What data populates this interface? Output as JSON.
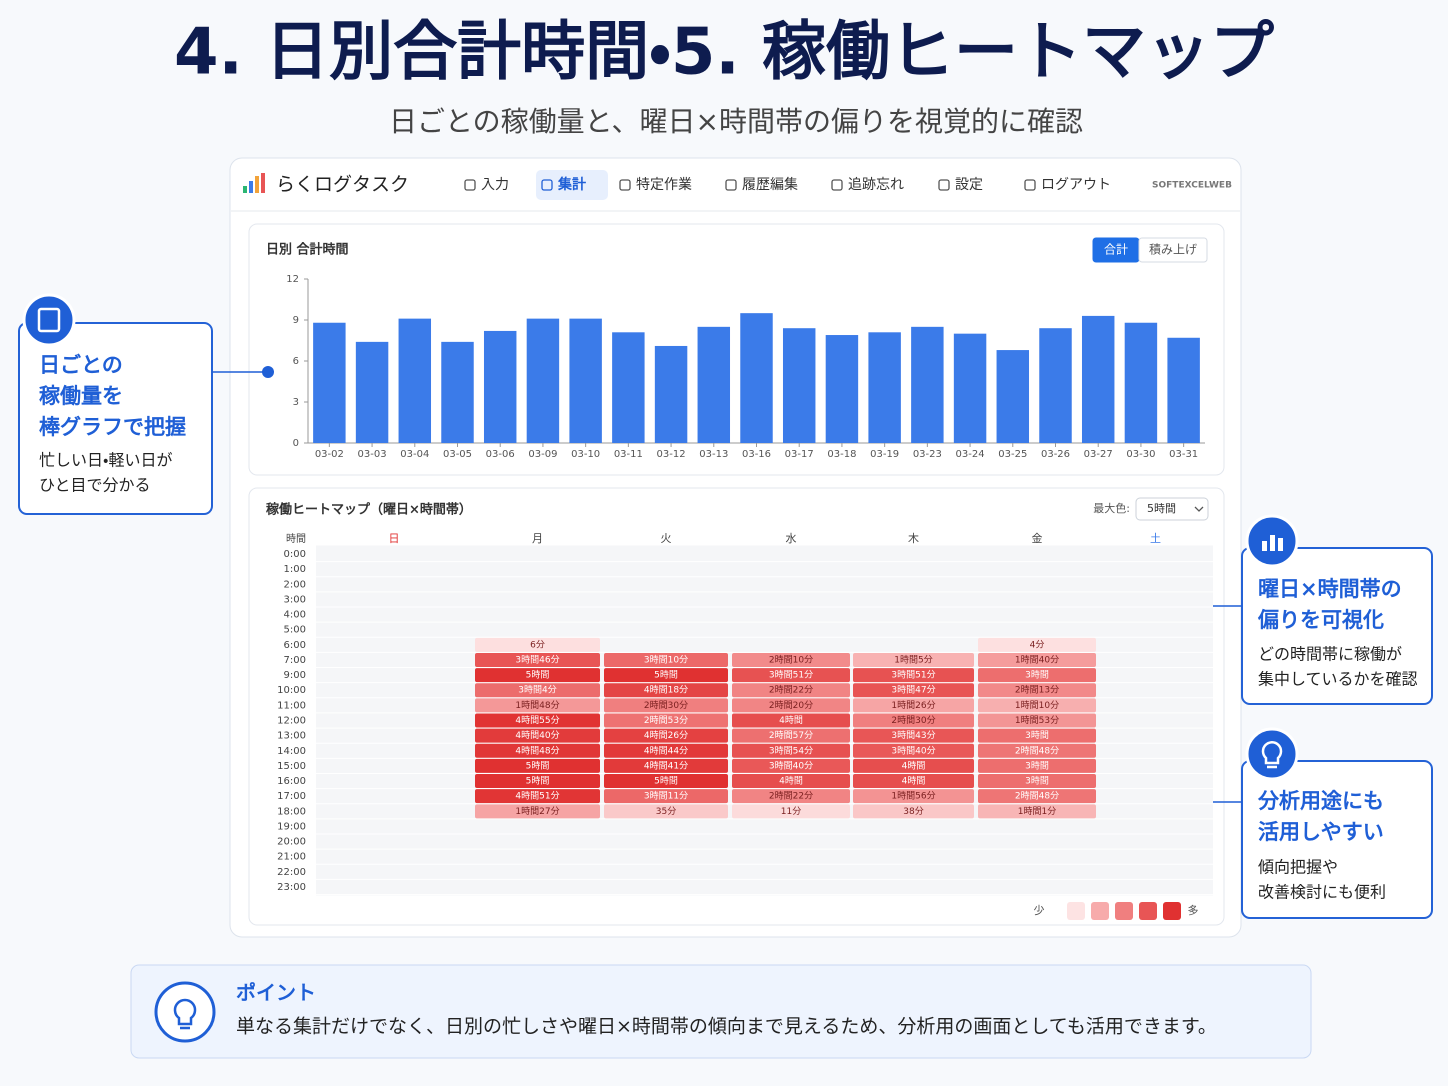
{
  "header": {
    "title": "4. 日別合計時間・5. 稼働ヒートマップ",
    "subtitle": "日ごとの稼働量と、曜日×時間帯の偏りを視覚的に確認"
  },
  "app": {
    "name": "らくログタスク",
    "nav": [
      "入力",
      "集計",
      "特定作業",
      "履歴編集",
      "追跡忘れ",
      "設定",
      "ログアウト"
    ],
    "active_nav": "集計",
    "brand": "SOFTEXCELWEB"
  },
  "callouts": [
    {
      "title": [
        "日ごとの",
        "稼働量を",
        "棒グラフで把握"
      ],
      "body": [
        "忙しい日・軽い日が",
        "ひと目で分かる"
      ]
    },
    {
      "title": [
        "曜日×時間帯の",
        "偏りを可視化"
      ],
      "body": [
        "どの時間帯に稼働が",
        "集中しているかを確認"
      ]
    },
    {
      "title": [
        "分析用途にも",
        "活用しやすい"
      ],
      "body": [
        "傾向把握や",
        "改善検討にも便利"
      ]
    }
  ],
  "point": {
    "title": "ポイント",
    "text": "単なる集計だけでなく、日別の忙しさや曜日×時間帯の傾向まで見えるため、分析用の画面としても活用できます。"
  },
  "chart_data": [
    {
      "type": "bar",
      "title": "日別 合計時間",
      "categories": [
        "03-02",
        "03-03",
        "03-04",
        "03-05",
        "03-06",
        "03-09",
        "03-10",
        "03-11",
        "03-12",
        "03-13",
        "03-16",
        "03-17",
        "03-18",
        "03-19",
        "03-23",
        "03-24",
        "03-25",
        "03-26",
        "03-27",
        "03-30",
        "03-31"
      ],
      "values": [
        8.8,
        7.4,
        9.1,
        7.4,
        8.2,
        9.1,
        9.1,
        8.1,
        7.1,
        8.5,
        9.5,
        8.4,
        7.9,
        8.1,
        8.5,
        8.0,
        6.8,
        8.4,
        9.3,
        8.8,
        7.7
      ],
      "color": "#3b7be9",
      "ylim": [
        0,
        12
      ],
      "yticks": [
        0,
        3,
        6,
        9,
        12
      ],
      "toggle": [
        "合計",
        "積み上げ"
      ],
      "active_toggle": "合計"
    },
    {
      "type": "heatmap",
      "title": "稼働ヒートマップ（曜日×時間帯）",
      "row_header": "時間",
      "categories": [
        "日",
        "月",
        "火",
        "水",
        "木",
        "金",
        "土"
      ],
      "category_colors": [
        "#e03131",
        "#444444",
        "#444444",
        "#444444",
        "#444444",
        "#444444",
        "#3b7be9"
      ],
      "rows": [
        "0:00",
        "1:00",
        "2:00",
        "3:00",
        "4:00",
        "5:00",
        "6:00",
        "7:00",
        "9:00",
        "10:00",
        "11:00",
        "12:00",
        "13:00",
        "14:00",
        "15:00",
        "16:00",
        "17:00",
        "18:00",
        "19:00",
        "20:00",
        "21:00",
        "22:00",
        "23:00"
      ],
      "values": [
        [
          null,
          null,
          null,
          null,
          null,
          null,
          null
        ],
        [
          null,
          null,
          null,
          null,
          null,
          null,
          null
        ],
        [
          null,
          null,
          null,
          null,
          null,
          null,
          null
        ],
        [
          null,
          null,
          null,
          null,
          null,
          null,
          null
        ],
        [
          null,
          null,
          null,
          null,
          null,
          null,
          null
        ],
        [
          null,
          null,
          null,
          null,
          null,
          null,
          null
        ],
        [
          null,
          6,
          null,
          null,
          null,
          4,
          null
        ],
        [
          null,
          226,
          190,
          130,
          65,
          100,
          null
        ],
        [
          null,
          300,
          300,
          231,
          231,
          180,
          null
        ],
        [
          null,
          184,
          258,
          142,
          227,
          133,
          null
        ],
        [
          null,
          108,
          150,
          140,
          86,
          70,
          null
        ],
        [
          null,
          295,
          173,
          240,
          150,
          113,
          null
        ],
        [
          null,
          280,
          266,
          177,
          223,
          180,
          null
        ],
        [
          null,
          288,
          284,
          234,
          220,
          168,
          null
        ],
        [
          null,
          300,
          281,
          220,
          240,
          180,
          null
        ],
        [
          null,
          300,
          300,
          240,
          240,
          180,
          null
        ],
        [
          null,
          291,
          191,
          142,
          116,
          168,
          null
        ],
        [
          null,
          87,
          35,
          11,
          38,
          61,
          null
        ],
        [
          null,
          null,
          null,
          null,
          null,
          null,
          null
        ],
        [
          null,
          null,
          null,
          null,
          null,
          null,
          null
        ],
        [
          null,
          null,
          null,
          null,
          null,
          null,
          null
        ],
        [
          null,
          null,
          null,
          null,
          null,
          null,
          null
        ],
        [
          null,
          null,
          null,
          null,
          null,
          null,
          null
        ]
      ],
      "value_labels": [
        [
          null,
          null,
          null,
          null,
          null,
          null,
          null
        ],
        [
          null,
          null,
          null,
          null,
          null,
          null,
          null
        ],
        [
          null,
          null,
          null,
          null,
          null,
          null,
          null
        ],
        [
          null,
          null,
          null,
          null,
          null,
          null,
          null
        ],
        [
          null,
          null,
          null,
          null,
          null,
          null,
          null
        ],
        [
          null,
          null,
          null,
          null,
          null,
          null,
          null
        ],
        [
          null,
          "6分",
          null,
          null,
          null,
          "4分",
          null
        ],
        [
          null,
          "3時間46分",
          "3時間10分",
          "2時間10分",
          "1時間5分",
          "1時間40分",
          null
        ],
        [
          null,
          "5時間",
          "5時間",
          "3時間51分",
          "3時間51分",
          "3時間",
          null
        ],
        [
          null,
          "3時間4分",
          "4時間18分",
          "2時間22分",
          "3時間47分",
          "2時間13分",
          null
        ],
        [
          null,
          "1時間48分",
          "2時間30分",
          "2時間20分",
          "1時間26分",
          "1時間10分",
          null
        ],
        [
          null,
          "4時間55分",
          "2時間53分",
          "4時間",
          "2時間30分",
          "1時間53分",
          null
        ],
        [
          null,
          "4時間40分",
          "4時間26分",
          "2時間57分",
          "3時間43分",
          "3時間",
          null
        ],
        [
          null,
          "4時間48分",
          "4時間44分",
          "3時間54分",
          "3時間40分",
          "2時間48分",
          null
        ],
        [
          null,
          "5時間",
          "4時間41分",
          "3時間40分",
          "4時間",
          "3時間",
          null
        ],
        [
          null,
          "5時間",
          "5時間",
          "4時間",
          "4時間",
          "3時間",
          null
        ],
        [
          null,
          "4時間51分",
          "3時間11分",
          "2時間22分",
          "1時間56分",
          "2時間48分",
          null
        ],
        [
          null,
          "1時間27分",
          "35分",
          "11分",
          "38分",
          "1時間1分",
          null
        ],
        [
          null,
          null,
          null,
          null,
          null,
          null,
          null
        ],
        [
          null,
          null,
          null,
          null,
          null,
          null,
          null
        ],
        [
          null,
          null,
          null,
          null,
          null,
          null,
          null
        ],
        [
          null,
          null,
          null,
          null,
          null,
          null,
          null
        ],
        [
          null,
          null,
          null,
          null,
          null,
          null,
          null
        ]
      ],
      "color_max_label": "最大色:",
      "color_max": {
        "value": 300,
        "label": "5時間"
      },
      "color_scale": [
        "#fde3e3",
        "#f7abab",
        "#f07f7f",
        "#e85555",
        "#e03131"
      ],
      "legend": {
        "low": "少",
        "high": "多"
      }
    }
  ]
}
